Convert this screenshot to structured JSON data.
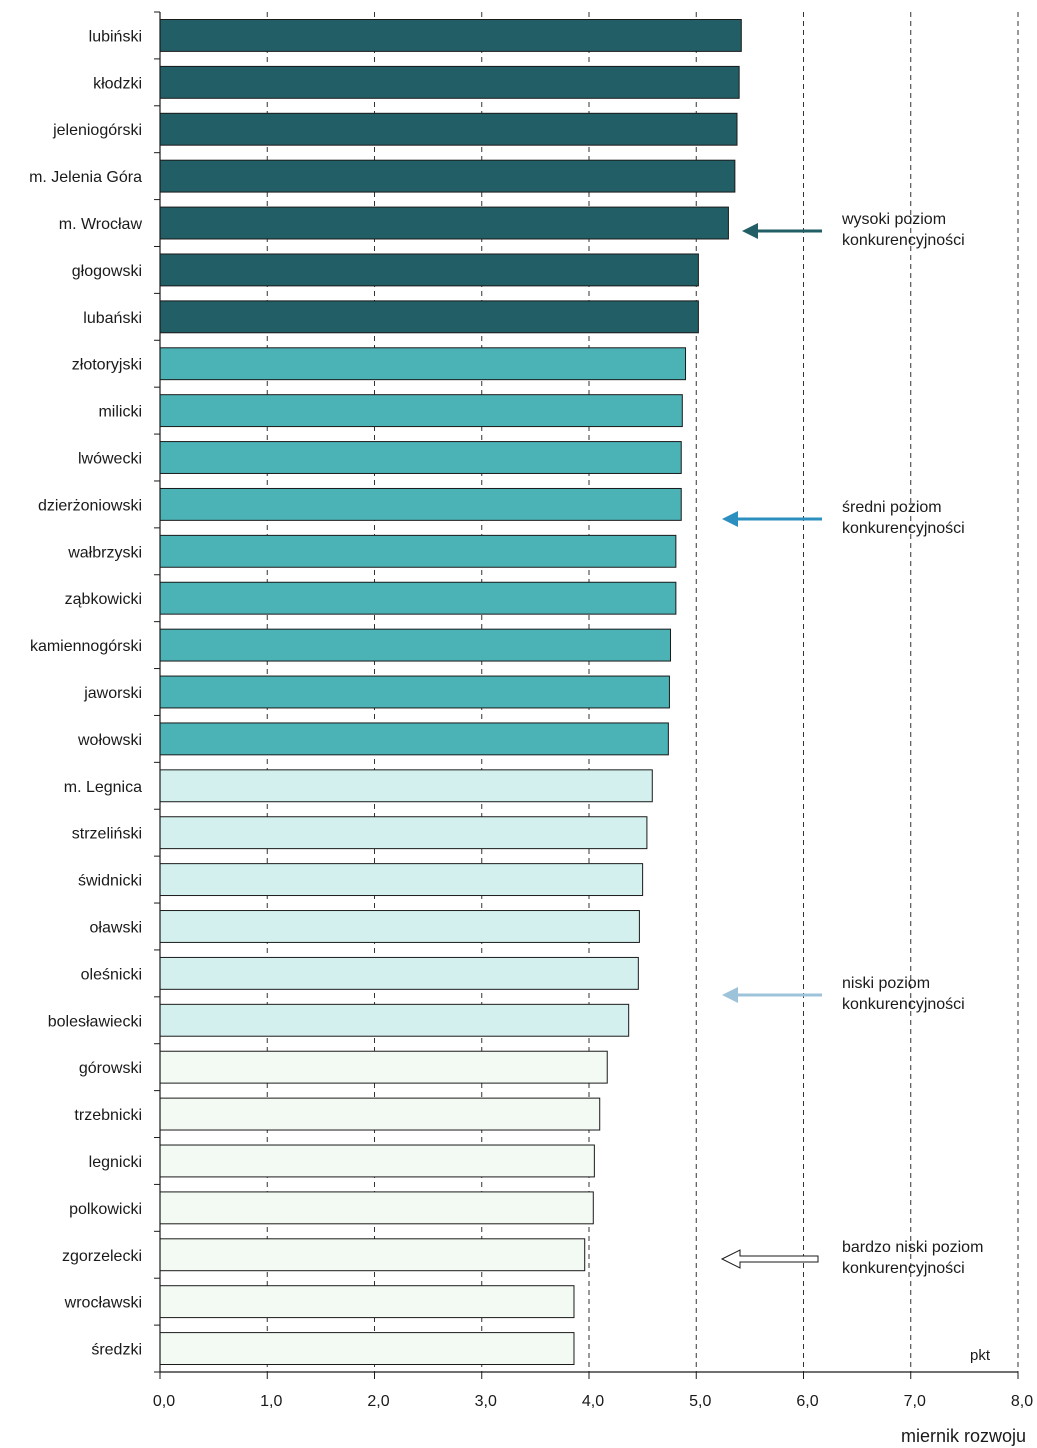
{
  "chart_data": {
    "type": "bar",
    "orientation": "horizontal",
    "categories": [
      "lubiński",
      "kłodzki",
      "jeleniogórski",
      "m. Jelenia Góra",
      "m. Wrocław",
      "głogowski",
      "lubański",
      "złotoryjski",
      "milicki",
      "lwówecki",
      "dzierżoniowski",
      "wałbrzyski",
      "ząbkowicki",
      "kamiennogórski",
      "jaworski",
      "wołowski",
      "m. Legnica",
      "strzeliński",
      "świdnicki",
      "oławski",
      "oleśnicki",
      "bolesławiecki",
      "górowski",
      "trzebnicki",
      "legnicki",
      "polkowicki",
      "zgorzelecki",
      "wrocławski",
      "średzki"
    ],
    "values": [
      5.42,
      5.4,
      5.38,
      5.36,
      5.3,
      5.02,
      5.02,
      4.9,
      4.87,
      4.86,
      4.86,
      4.81,
      4.81,
      4.76,
      4.75,
      4.74,
      4.59,
      4.54,
      4.5,
      4.47,
      4.46,
      4.37,
      4.17,
      4.1,
      4.05,
      4.04,
      3.96,
      3.86,
      3.86
    ],
    "groups": [
      0,
      0,
      0,
      0,
      0,
      0,
      0,
      1,
      1,
      1,
      1,
      1,
      1,
      1,
      1,
      1,
      2,
      2,
      2,
      2,
      2,
      2,
      3,
      3,
      3,
      3,
      3,
      3,
      3
    ],
    "group_colors": [
      "#225e66",
      "#4bb2b6",
      "#d3f0ef",
      "#f3faf3"
    ],
    "legend": [
      {
        "line1": "wysoki poziom",
        "line2": "konkurencyjności",
        "color": "#225e66"
      },
      {
        "line1": "średni poziom",
        "line2": "konkurencyjności",
        "color": "#2b8fbf"
      },
      {
        "line1": "niski poziom",
        "line2": "konkurencyjności",
        "color": "#9dc3da"
      },
      {
        "line1": "bardzo niski poziom",
        "line2": "konkurencyjności",
        "color": "#ffffff"
      }
    ],
    "xticks": [
      "0,0",
      "1,0",
      "2,0",
      "3,0",
      "4,0",
      "5,0",
      "6,0",
      "7,0",
      "8,0"
    ],
    "xlim": [
      0,
      8
    ],
    "xlabel": "miernik rozwoju",
    "unit": "pkt",
    "grid": "vertical dashed"
  }
}
